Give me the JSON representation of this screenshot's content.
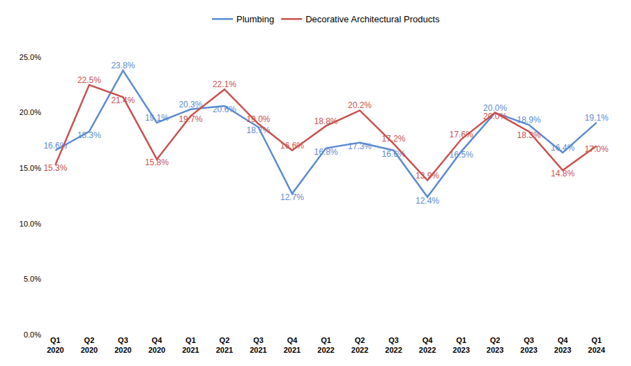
{
  "chart_data": {
    "type": "line",
    "categories": [
      "Q1 2020",
      "Q2 2020",
      "Q3 2020",
      "Q4 2020",
      "Q1 2021",
      "Q2 2021",
      "Q3 2021",
      "Q4 2021",
      "Q1 2022",
      "Q2 2022",
      "Q3 2022",
      "Q4 2022",
      "Q1 2023",
      "Q2 2023",
      "Q3 2023",
      "Q4 2023",
      "Q1 2024"
    ],
    "series": [
      {
        "name": "Plumbing",
        "color": "#5b8bd0",
        "values": [
          16.6,
          18.3,
          23.8,
          19.1,
          20.3,
          20.6,
          18.7,
          12.7,
          16.8,
          17.3,
          16.6,
          12.4,
          16.5,
          20.0,
          18.9,
          16.4,
          19.1
        ],
        "value_labels": [
          "16.6%",
          "18.3%",
          "23.8%",
          "19.1%",
          "20.3%",
          "20.6%",
          "18.7%",
          "12.7%",
          "16.8%",
          "17.3%",
          "16.6%",
          "12.4%",
          "16.5%",
          "20.0%",
          "18.9%",
          "16.4%",
          "19.1%"
        ]
      },
      {
        "name": "Decorative Architectural Products",
        "color": "#c9514f",
        "values": [
          15.3,
          22.5,
          21.4,
          15.8,
          19.7,
          22.1,
          19.0,
          16.6,
          18.8,
          20.2,
          17.2,
          13.9,
          17.6,
          20.0,
          18.3,
          14.8,
          17.0
        ],
        "value_labels": [
          "15.3%",
          "22.5%",
          "21.4%",
          "15.8%",
          "19.7%",
          "22.1%",
          "19.0%",
          "16.6%",
          "18.8%",
          "20.2%",
          "17.2%",
          "13.9%",
          "17.6%",
          "20.0%",
          "18.3%",
          "14.8%",
          "17.0%"
        ]
      }
    ],
    "ylim": [
      0,
      25
    ],
    "yticks": [
      {
        "value": 0,
        "label": "0.0%"
      },
      {
        "value": 5,
        "label": "5.0%"
      },
      {
        "value": 10,
        "label": "10.0%"
      },
      {
        "value": 15,
        "label": "15.0%"
      },
      {
        "value": 20,
        "label": "20.0%"
      },
      {
        "value": 25,
        "label": "25.0%"
      }
    ],
    "grid": false,
    "legend": "top",
    "data_labels": true
  }
}
